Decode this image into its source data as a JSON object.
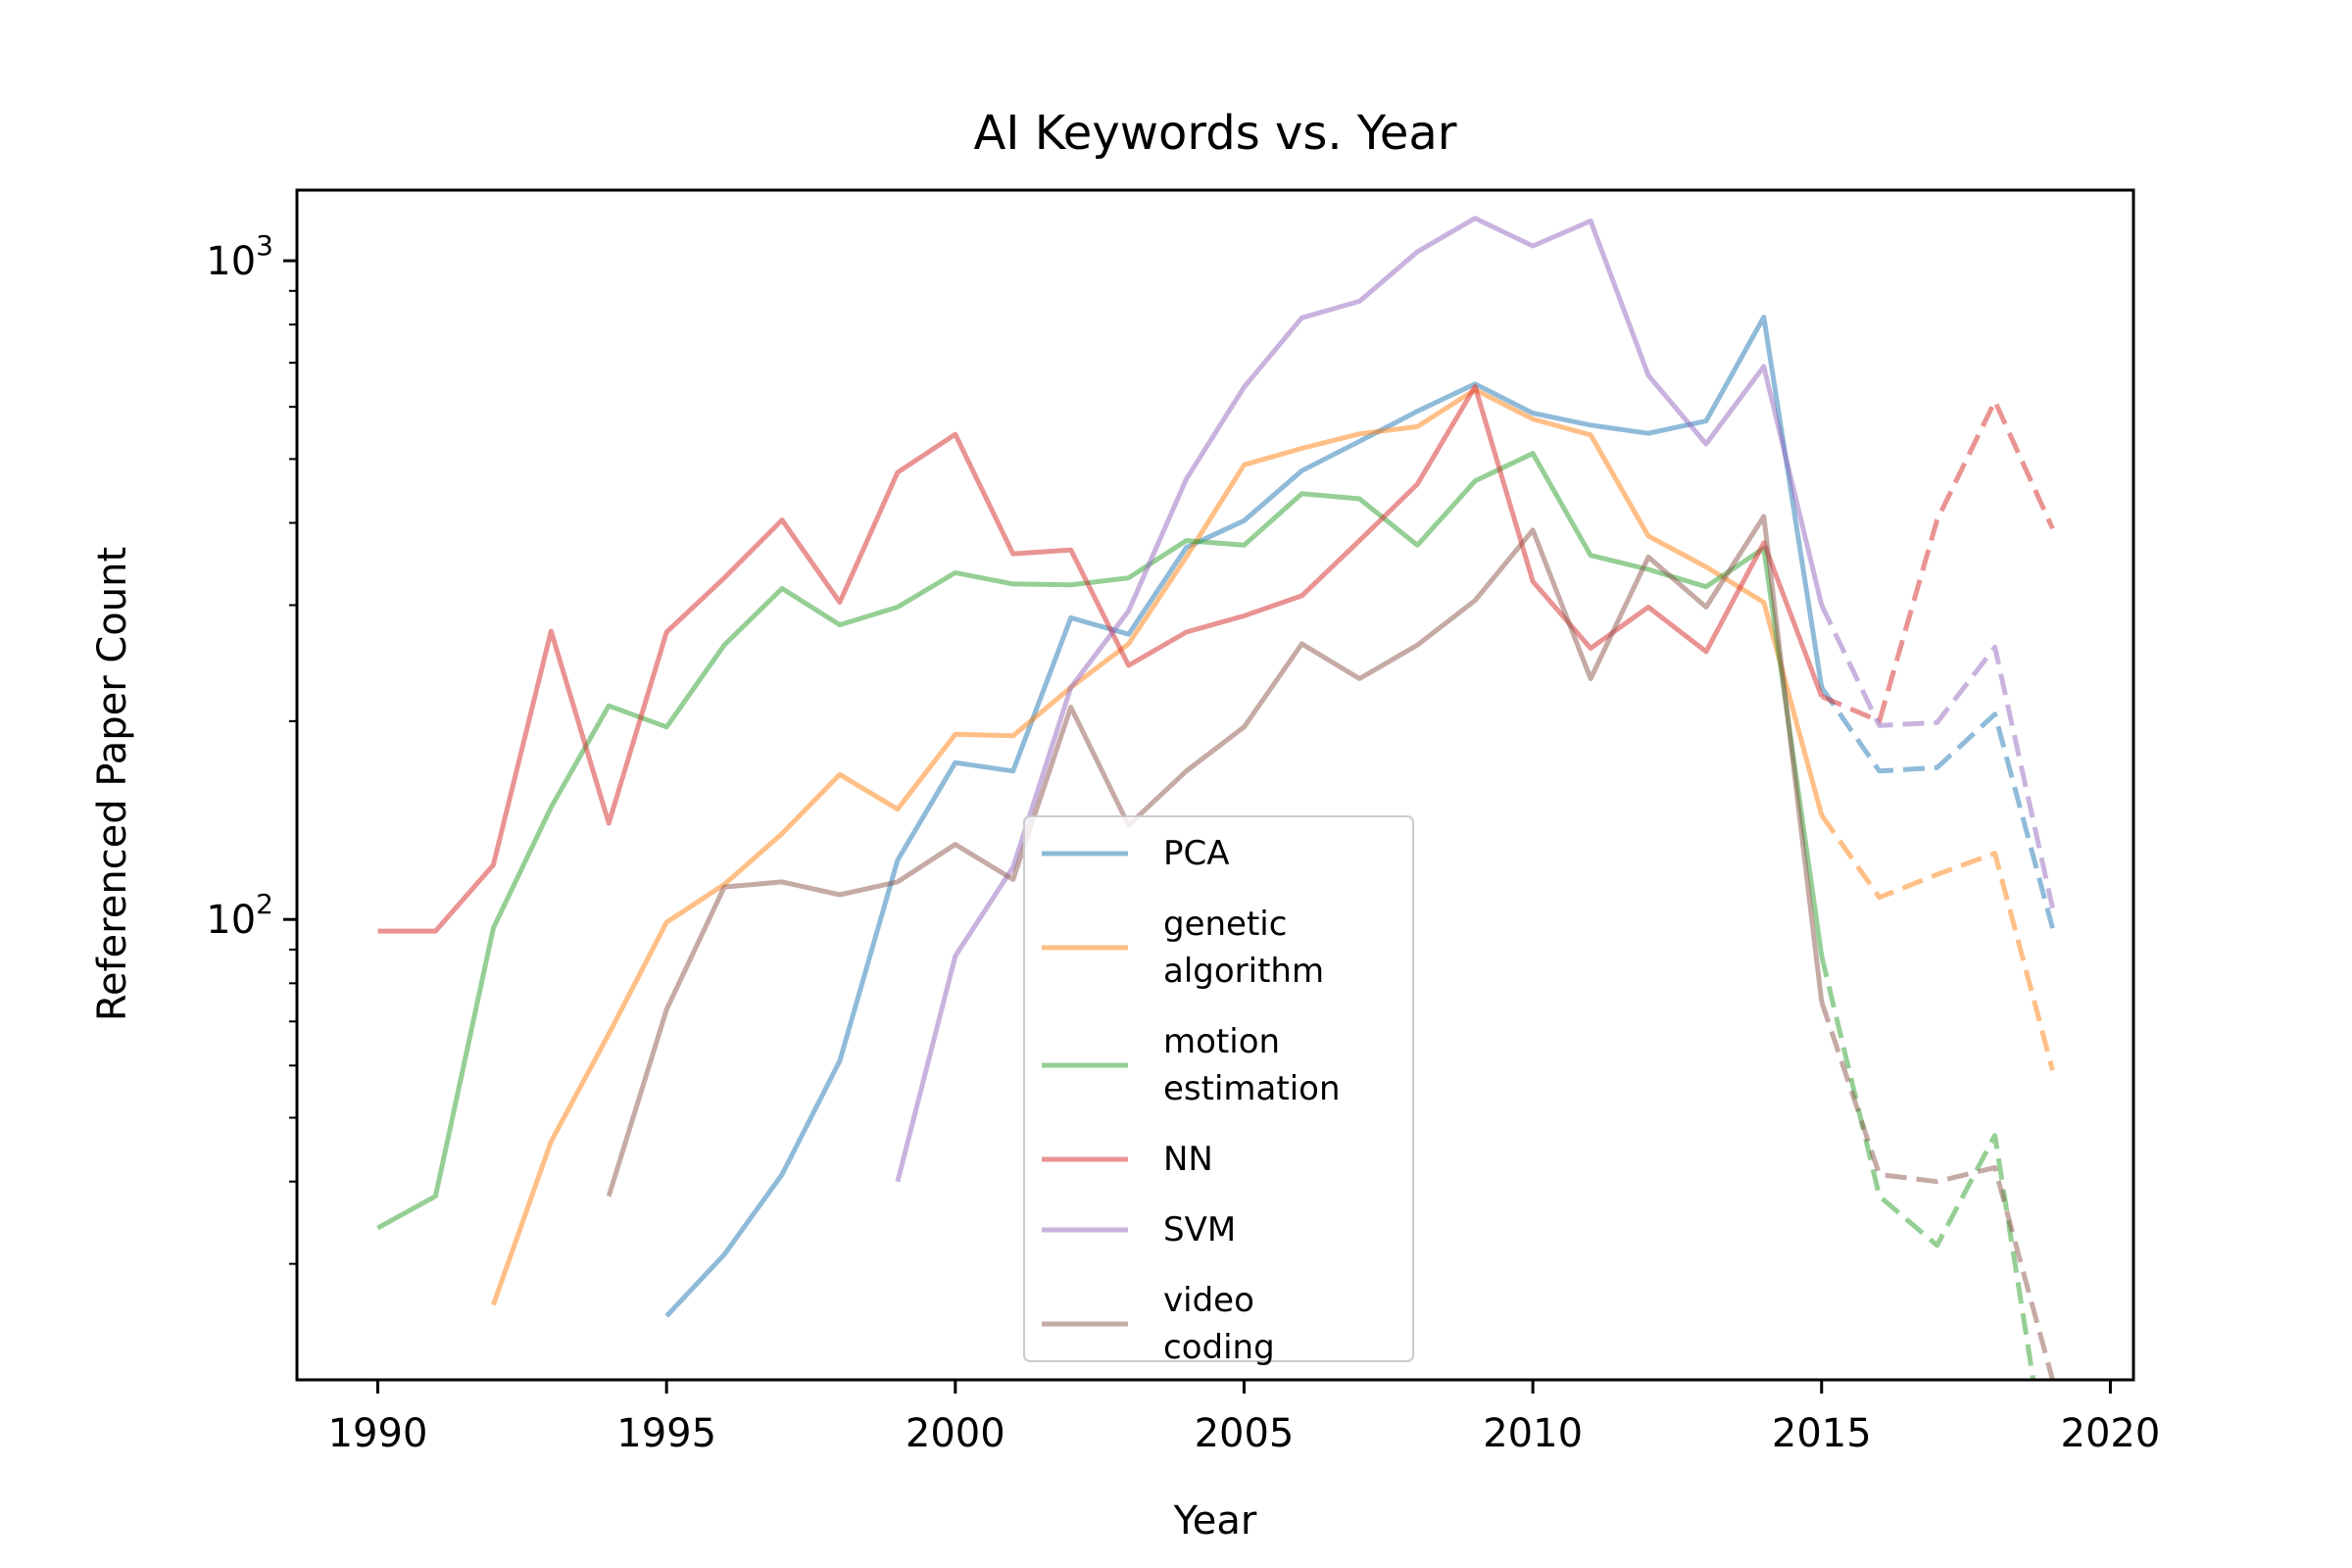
{
  "chart_data": {
    "type": "line",
    "title": "AI Keywords vs. Year",
    "xlabel": "Year",
    "ylabel": "Referenced Paper Count",
    "xscale": "linear",
    "yscale": "log",
    "xlim": [
      1988.6,
      2020.4
    ],
    "ylim": [
      20,
      1280
    ],
    "xticks": [
      1990,
      1995,
      2000,
      2005,
      2010,
      2015,
      2020
    ],
    "yticks": [
      {
        "value": 100,
        "base": "10",
        "exp": "2"
      },
      {
        "value": 1000,
        "base": "10",
        "exp": "3"
      }
    ],
    "grid": false,
    "legend_position": "lower center",
    "x": [
      1990,
      1991,
      1992,
      1993,
      1994,
      1995,
      1996,
      1997,
      1998,
      1999,
      2000,
      2001,
      2002,
      2003,
      2004,
      2005,
      2006,
      2007,
      2008,
      2009,
      2010,
      2011,
      2012,
      2013,
      2014,
      2015,
      2016,
      2017,
      2018,
      2019
    ],
    "observed_until": 2015,
    "series": [
      {
        "name": "PCA",
        "color": "#1f77b4",
        "values": [
          null,
          null,
          null,
          null,
          null,
          25,
          31,
          41,
          61,
          123,
          173,
          168,
          287,
          271,
          367,
          403,
          480,
          532,
          591,
          650,
          587,
          563,
          547,
          571,
          821,
          225,
          168,
          170,
          205,
          97
        ]
      },
      {
        "name": "genetic\nalgorithm",
        "color": "#ff7f0e",
        "values": [
          null,
          null,
          26,
          46,
          67,
          99,
          113,
          135,
          166,
          147,
          191,
          190,
          225,
          262,
          355,
          490,
          519,
          546,
          560,
          637,
          575,
          544,
          382,
          343,
          303,
          144,
          108,
          117,
          126,
          59
        ]
      },
      {
        "name": "motion\nestimation",
        "color": "#2ca02c",
        "values": [
          34,
          38,
          97,
          148,
          211,
          196,
          261,
          318,
          280,
          298,
          336,
          323,
          322,
          330,
          376,
          370,
          443,
          435,
          370,
          463,
          510,
          357,
          340,
          320,
          366,
          88,
          38,
          32,
          47,
          13
        ]
      },
      {
        "name": "NN",
        "color": "#d62728",
        "values": [
          96,
          96,
          121,
          274,
          140,
          273,
          330,
          404,
          303,
          477,
          545,
          359,
          364,
          243,
          273,
          289,
          310,
          376,
          458,
          644,
          326,
          258,
          298,
          255,
          373,
          218,
          200,
          404,
          612,
          392
        ]
      },
      {
        "name": "SVM",
        "color": "#9467bd",
        "values": [
          null,
          null,
          null,
          null,
          null,
          null,
          null,
          null,
          null,
          40,
          88,
          120,
          225,
          294,
          466,
          643,
          819,
          868,
          1032,
          1160,
          1053,
          1149,
          670,
          527,
          691,
          300,
          197,
          199,
          259,
          104
        ]
      },
      {
        "name": "video\ncoding",
        "color": "#8c564b",
        "values": [
          null,
          null,
          null,
          null,
          38,
          73,
          112,
          114,
          109,
          114,
          130,
          115,
          210,
          139,
          168,
          196,
          262,
          232,
          261,
          305,
          390,
          232,
          355,
          298,
          409,
          75,
          41,
          40,
          42,
          20
        ]
      }
    ]
  }
}
